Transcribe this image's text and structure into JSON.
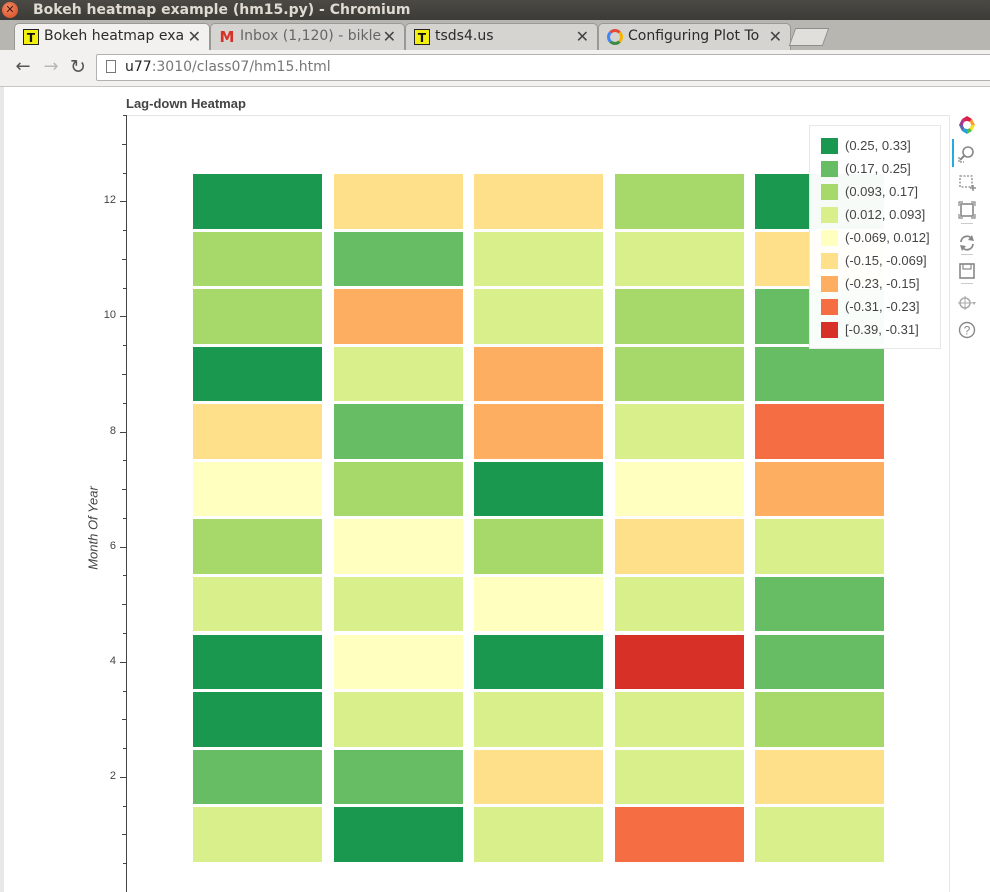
{
  "window": {
    "title": "Bokeh heatmap example (hm15.py) - Chromium"
  },
  "tabs": [
    {
      "label": "Bokeh heatmap exa",
      "icon": "tsds-favicon-icon",
      "active": true
    },
    {
      "label": "Inbox (1,120) - bikle",
      "icon": "gmail-icon",
      "active": false
    },
    {
      "label": "tsds4.us",
      "icon": "tsds-favicon-icon",
      "active": false
    },
    {
      "label": "Configuring Plot To",
      "icon": "bokeh-docs-icon",
      "active": false
    }
  ],
  "address_bar": {
    "host": "u77",
    "rest": ":3010/class07/hm15.html"
  },
  "chart_data": {
    "type": "heatmap",
    "title": "Lag-down Heatmap",
    "ylabel": "Month Of Year",
    "xlabel": "",
    "y_ticks": [
      "2",
      "4",
      "6",
      "8",
      "10",
      "12"
    ],
    "ylim": [
      0,
      13.5
    ],
    "rows": [
      1,
      2,
      3,
      4,
      5,
      6,
      7,
      8,
      9,
      10,
      11,
      12
    ],
    "columns": 5,
    "cells": [
      [
        3,
        0,
        3,
        7,
        3
      ],
      [
        1,
        1,
        5,
        3,
        5
      ],
      [
        0,
        3,
        3,
        3,
        2
      ],
      [
        0,
        4,
        0,
        8,
        1
      ],
      [
        3,
        3,
        4,
        3,
        1
      ],
      [
        2,
        4,
        2,
        5,
        3
      ],
      [
        4,
        2,
        0,
        4,
        6
      ],
      [
        5,
        1,
        6,
        3,
        7
      ],
      [
        0,
        3,
        6,
        2,
        1
      ],
      [
        2,
        6,
        3,
        2,
        1
      ],
      [
        2,
        1,
        3,
        3,
        5
      ],
      [
        0,
        5,
        5,
        2,
        0
      ]
    ],
    "legend": [
      {
        "label": "(0.25, 0.33]",
        "color": "#1a9850"
      },
      {
        "label": "(0.17, 0.25]",
        "color": "#66bd63"
      },
      {
        "label": "(0.093, 0.17]",
        "color": "#a6d96a"
      },
      {
        "label": "(0.012, 0.093]",
        "color": "#d9ef8b"
      },
      {
        "label": "(-0.069, 0.012]",
        "color": "#ffffbf"
      },
      {
        "label": "(-0.15, -0.069]",
        "color": "#fee08b"
      },
      {
        "label": "(-0.23, -0.15]",
        "color": "#fdae61"
      },
      {
        "label": "(-0.31, -0.23]",
        "color": "#f46d43"
      },
      {
        "label": "[-0.39, -0.31]",
        "color": "#d73027"
      }
    ],
    "legend_position": "top-right"
  },
  "bokeh_tools": [
    "bokeh-logo-icon",
    "wheel-zoom-icon",
    "box-select-icon",
    "box-zoom-icon",
    "reset-icon",
    "save-icon",
    "hover-icon",
    "help-icon"
  ]
}
